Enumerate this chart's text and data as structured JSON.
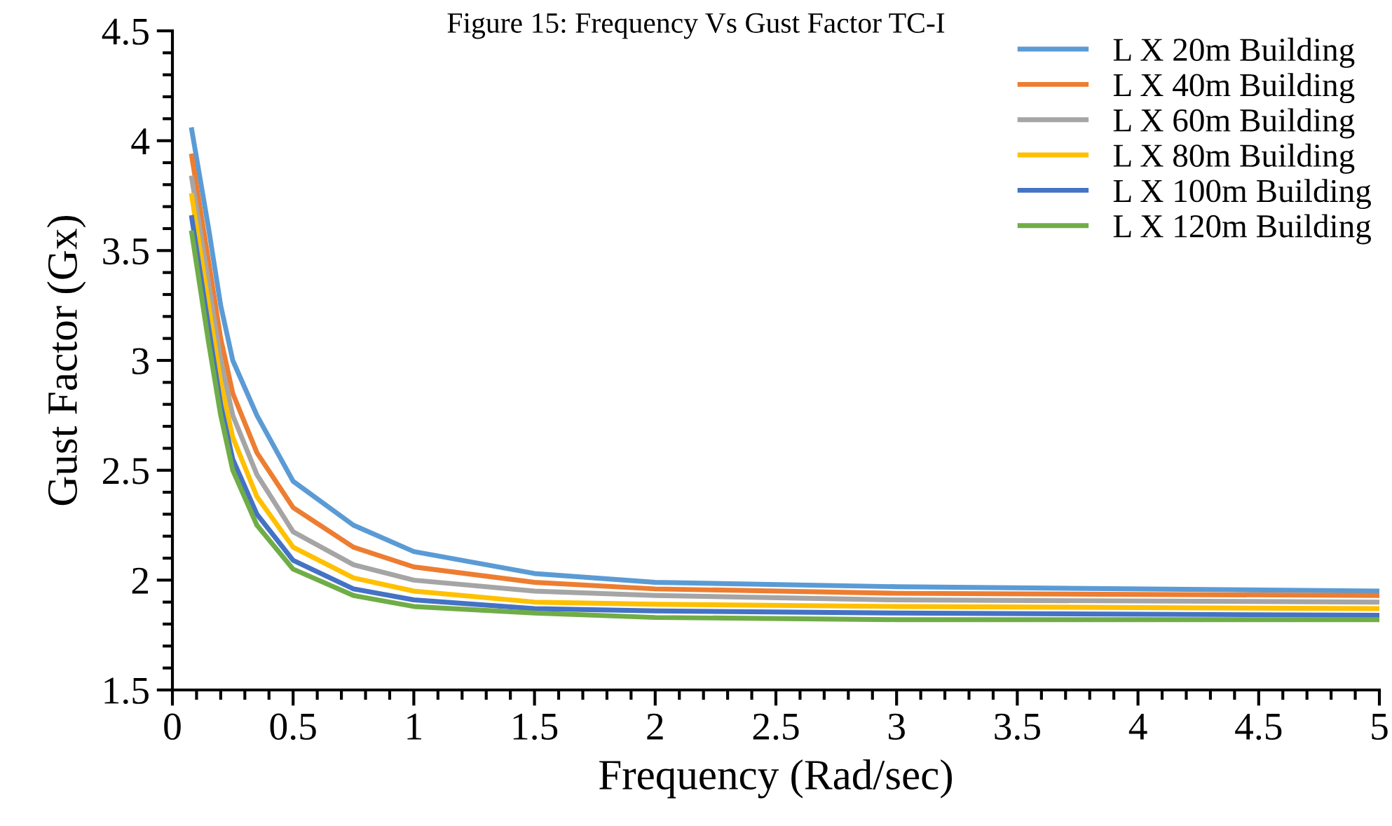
{
  "chart_data": {
    "type": "line",
    "title": "Figure 15: Frequency Vs Gust Factor TC-I",
    "xlabel": "Frequency (Rad/sec)",
    "ylabel": "Gust Factor (Gx)",
    "x": [
      0.08,
      0.15,
      0.2,
      0.25,
      0.35,
      0.5,
      0.75,
      1,
      1.5,
      2,
      3,
      5
    ],
    "series": [
      {
        "name": "L X 20m Building",
        "color": "#5b9bd5",
        "values": [
          4.05,
          3.6,
          3.25,
          3.0,
          2.75,
          2.45,
          2.25,
          2.13,
          2.03,
          1.99,
          1.97,
          1.95
        ]
      },
      {
        "name": "L X 40m Building",
        "color": "#ed7d31",
        "values": [
          3.93,
          3.45,
          3.1,
          2.85,
          2.58,
          2.33,
          2.15,
          2.06,
          1.99,
          1.96,
          1.94,
          1.93
        ]
      },
      {
        "name": "L X 60m Building",
        "color": "#a5a5a5",
        "values": [
          3.83,
          3.35,
          3.0,
          2.75,
          2.48,
          2.22,
          2.07,
          2.0,
          1.95,
          1.93,
          1.91,
          1.9
        ]
      },
      {
        "name": "L X 80m Building",
        "color": "#ffc000",
        "values": [
          3.75,
          3.25,
          2.9,
          2.65,
          2.38,
          2.15,
          2.01,
          1.95,
          1.9,
          1.89,
          1.88,
          1.87
        ]
      },
      {
        "name": "L X 100m Building",
        "color": "#4472c4",
        "values": [
          3.65,
          3.15,
          2.8,
          2.55,
          2.3,
          2.09,
          1.96,
          1.91,
          1.87,
          1.86,
          1.85,
          1.84
        ]
      },
      {
        "name": "L X 120m Building",
        "color": "#70ad47",
        "values": [
          3.58,
          3.08,
          2.75,
          2.5,
          2.25,
          2.05,
          1.93,
          1.88,
          1.85,
          1.83,
          1.82,
          1.82
        ]
      }
    ],
    "xlim": [
      0,
      5
    ],
    "xticks": [
      0,
      0.5,
      1,
      1.5,
      2,
      2.5,
      3,
      3.5,
      4,
      4.5,
      5
    ],
    "ylim": [
      1.5,
      4.5
    ],
    "yticks": [
      1.5,
      2,
      2.5,
      3,
      3.5,
      4,
      4.5
    ],
    "grid": false,
    "legend": "top right"
  }
}
